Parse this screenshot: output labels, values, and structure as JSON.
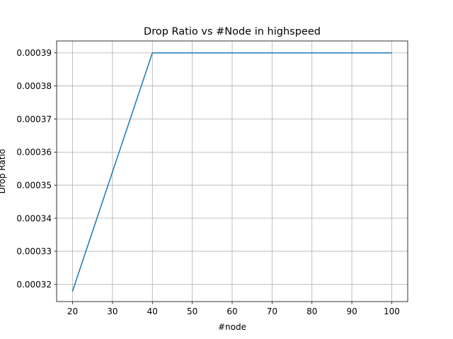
{
  "chart_data": {
    "type": "line",
    "title": "Drop Ratio vs #Node in highspeed",
    "xlabel": "#node",
    "ylabel": "Drop Ratio",
    "x": [
      20,
      40,
      60,
      80,
      100
    ],
    "series": [
      {
        "values": [
          0.000318,
          0.00039,
          0.00039,
          0.00039,
          0.00039
        ],
        "color": "#1f77b4"
      }
    ],
    "xlim": [
      16,
      104
    ],
    "ylim": [
      0.0003148,
      0.0003936
    ],
    "xticks": [
      20,
      30,
      40,
      50,
      60,
      70,
      80,
      90,
      100
    ],
    "xtick_labels": [
      "20",
      "30",
      "40",
      "50",
      "60",
      "70",
      "80",
      "90",
      "100"
    ],
    "yticks": [
      0.00032,
      0.00033,
      0.00034,
      0.00035,
      0.00036,
      0.00037,
      0.00038,
      0.00039
    ],
    "ytick_labels": [
      "0.00032",
      "0.00033",
      "0.00034",
      "0.00035",
      "0.00036",
      "0.00037",
      "0.00038",
      "0.00039"
    ],
    "grid": true,
    "grid_color": "#b0b0b0"
  }
}
